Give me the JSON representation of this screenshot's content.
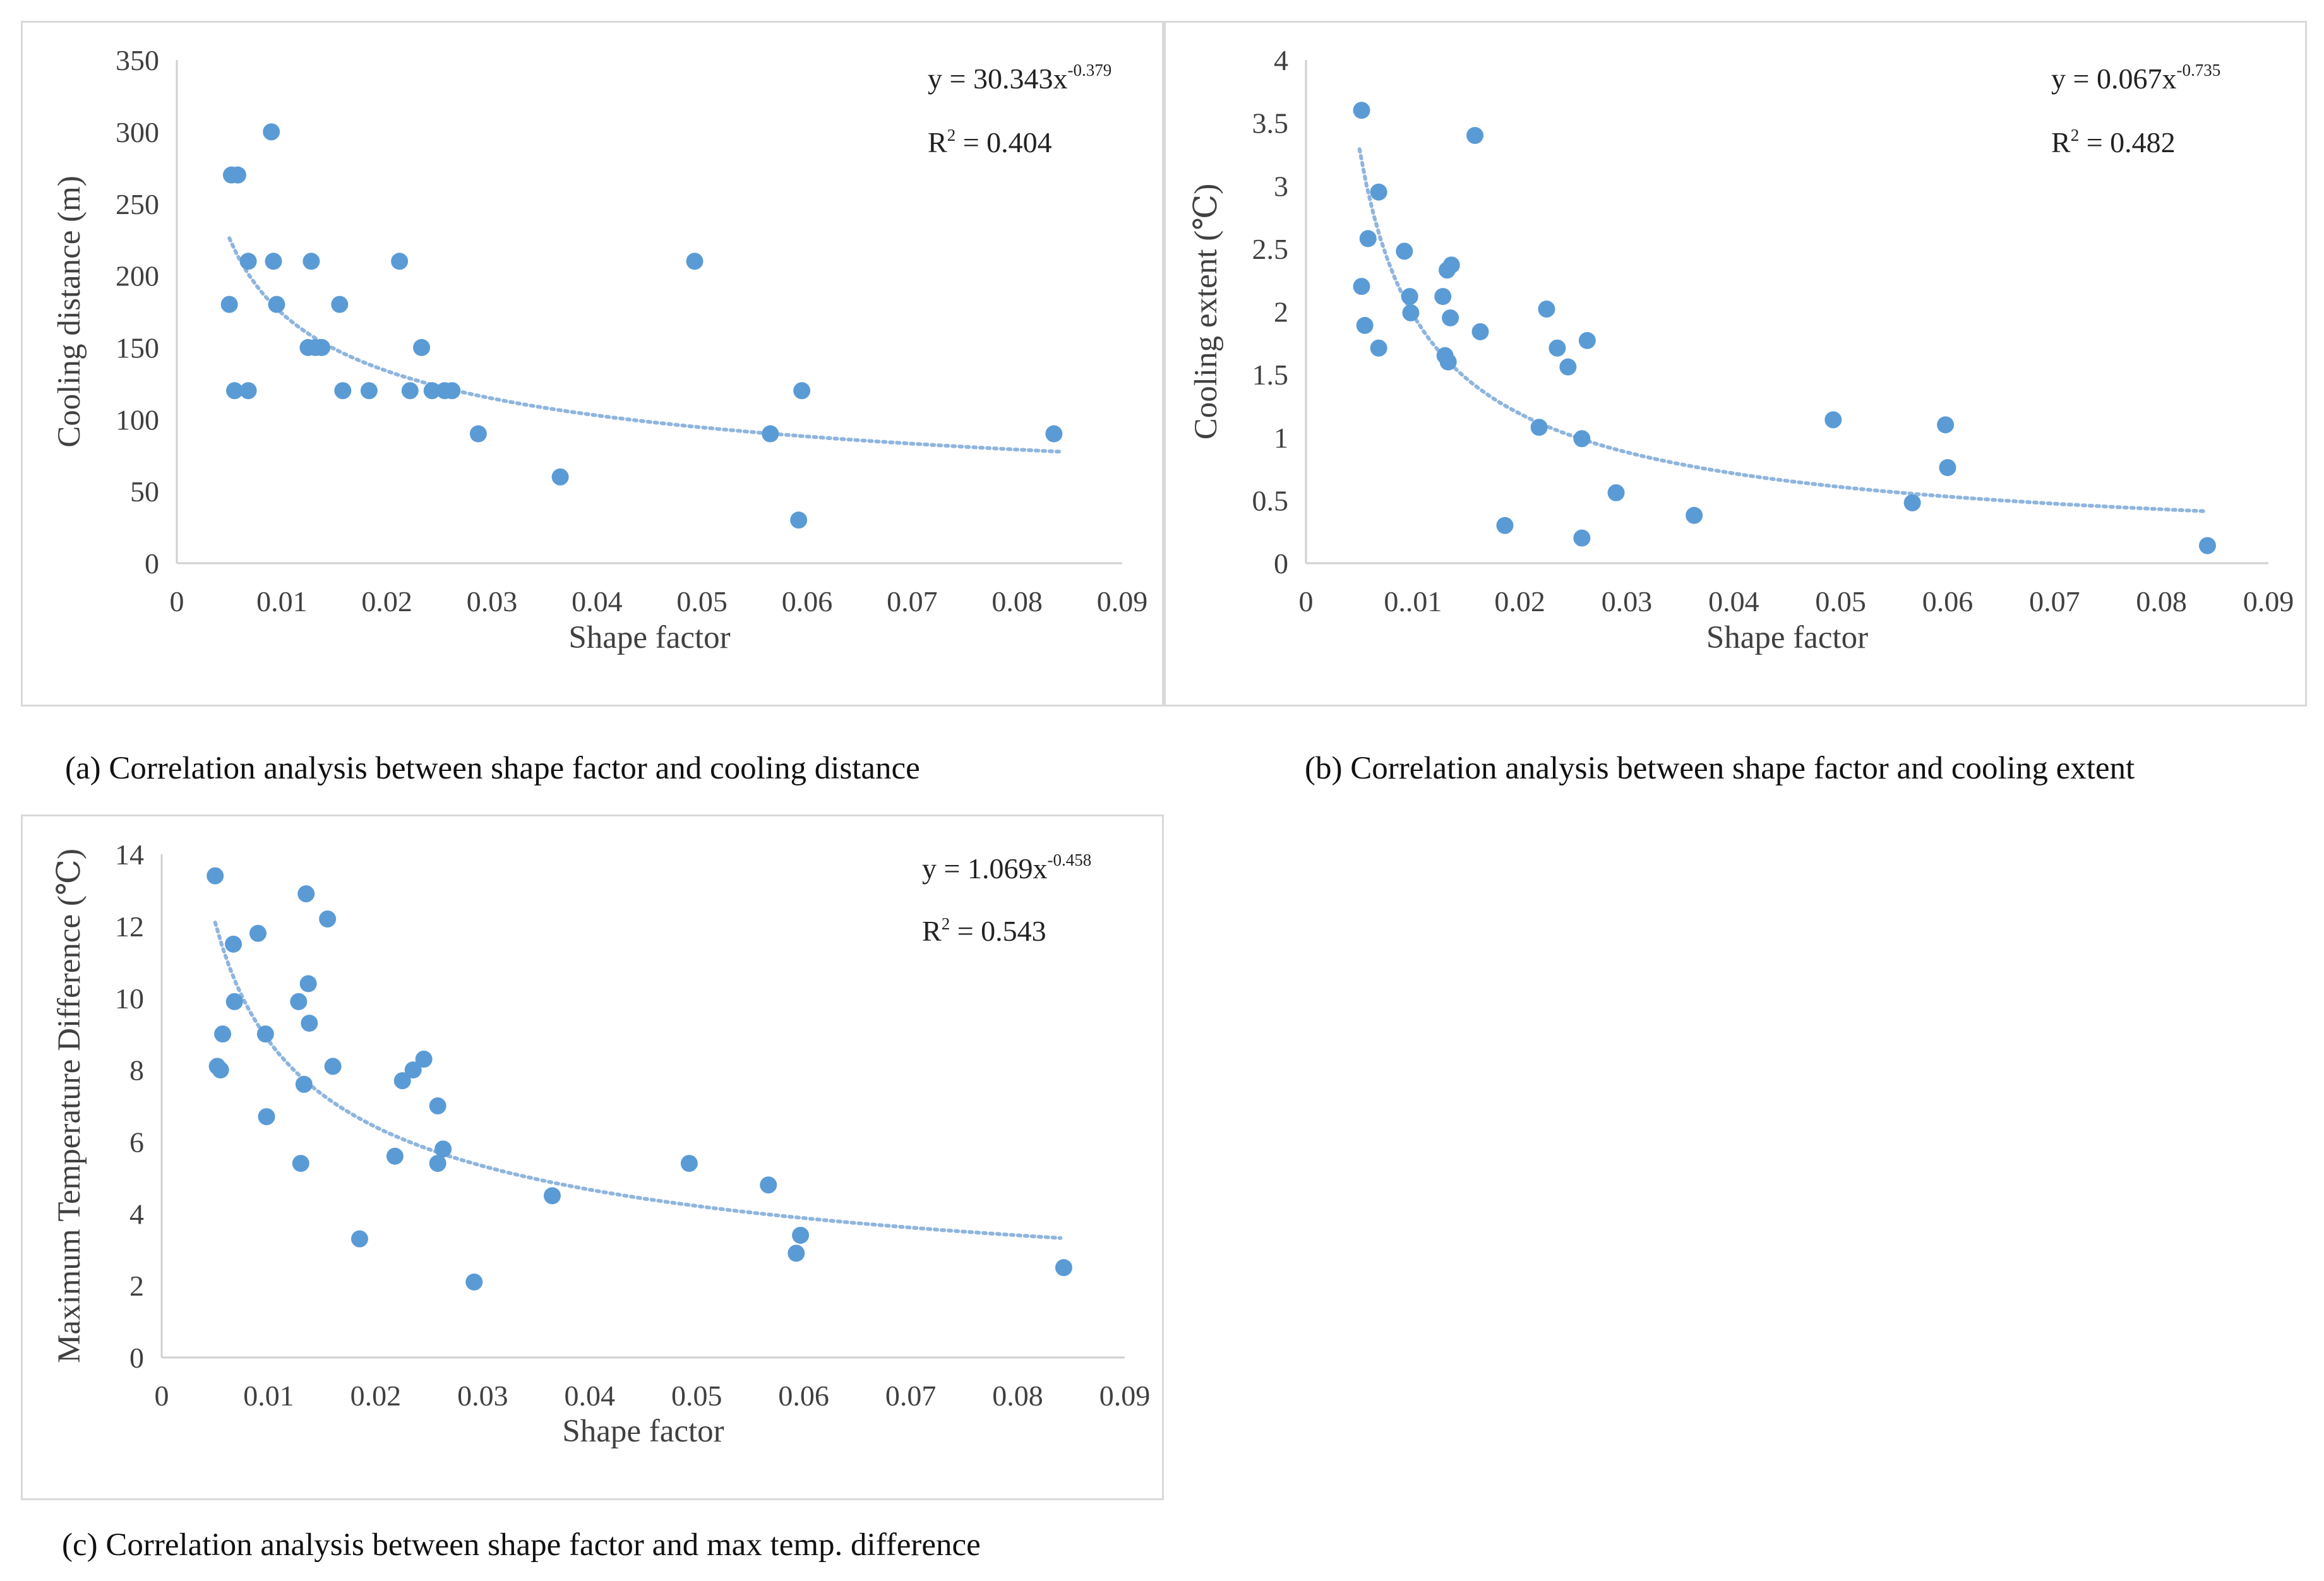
{
  "chart_data": [
    {
      "id": "a",
      "type": "scatter",
      "xlabel": "Shape factor",
      "ylabel": "Cooling distance (m)",
      "xlim": [
        0,
        0.09
      ],
      "ylim": [
        0,
        350
      ],
      "xticks": [
        0,
        0.01,
        0.02,
        0.03,
        0.04,
        0.05,
        0.06,
        0.07,
        0.08,
        0.09
      ],
      "xtick_labels": [
        "0",
        "0.01",
        "0.02",
        "0.03",
        "0.04",
        "0.05",
        "0.06",
        "0.07",
        "0.08",
        "0.09"
      ],
      "yticks": [
        0,
        50,
        100,
        150,
        200,
        250,
        300,
        350
      ],
      "ytick_labels": [
        "0",
        "50",
        "100",
        "150",
        "200",
        "250",
        "300",
        "350"
      ],
      "grid": false,
      "marker_color": "#5b9bd5",
      "trend_color": "#8fb5de",
      "equation_main": "y = 30.343x",
      "equation_exp": "-0.379",
      "r2_label": "R",
      "r2_exp": "2",
      "r2_value": " = 0.404",
      "trend": {
        "type": "power",
        "coef": 30.343,
        "exp": -0.379,
        "x_range": [
          0.005,
          0.084
        ]
      },
      "points": [
        {
          "x": 0.0052,
          "y": 270
        },
        {
          "x": 0.0058,
          "y": 270
        },
        {
          "x": 0.009,
          "y": 300
        },
        {
          "x": 0.005,
          "y": 180
        },
        {
          "x": 0.0068,
          "y": 210
        },
        {
          "x": 0.0092,
          "y": 210
        },
        {
          "x": 0.0095,
          "y": 180
        },
        {
          "x": 0.0128,
          "y": 210
        },
        {
          "x": 0.0155,
          "y": 180
        },
        {
          "x": 0.0212,
          "y": 210
        },
        {
          "x": 0.0055,
          "y": 120
        },
        {
          "x": 0.0068,
          "y": 120
        },
        {
          "x": 0.0125,
          "y": 150
        },
        {
          "x": 0.0132,
          "y": 150
        },
        {
          "x": 0.0138,
          "y": 150
        },
        {
          "x": 0.0158,
          "y": 120
        },
        {
          "x": 0.0183,
          "y": 120
        },
        {
          "x": 0.0222,
          "y": 120
        },
        {
          "x": 0.0233,
          "y": 150
        },
        {
          "x": 0.0243,
          "y": 120
        },
        {
          "x": 0.0255,
          "y": 120
        },
        {
          "x": 0.0262,
          "y": 120
        },
        {
          "x": 0.0287,
          "y": 90
        },
        {
          "x": 0.0365,
          "y": 60
        },
        {
          "x": 0.0493,
          "y": 210
        },
        {
          "x": 0.0565,
          "y": 90
        },
        {
          "x": 0.0592,
          "y": 30
        },
        {
          "x": 0.0595,
          "y": 120
        },
        {
          "x": 0.0835,
          "y": 90
        }
      ],
      "caption": "(a) Correlation analysis between shape factor and cooling distance"
    },
    {
      "id": "b",
      "type": "scatter",
      "xlabel": "Shape factor",
      "ylabel": "Cooling extent (℃)",
      "xlim": [
        0,
        0.09
      ],
      "ylim": [
        0,
        4
      ],
      "xticks": [
        0,
        0.01,
        0.02,
        0.03,
        0.04,
        0.05,
        0.06,
        0.07,
        0.08,
        0.09
      ],
      "xtick_labels": [
        "0",
        "0..01",
        "0.02",
        "0.03",
        "0.04",
        "0.05",
        "0.06",
        "0.07",
        "0.08",
        "0.09"
      ],
      "yticks": [
        0,
        0.5,
        1,
        1.5,
        2,
        2.5,
        3,
        3.5,
        4
      ],
      "ytick_labels": [
        "0",
        "0.5",
        "1",
        "1.5",
        "2",
        "2.5",
        "3",
        "3.5",
        "4"
      ],
      "grid": false,
      "marker_color": "#5b9bd5",
      "trend_color": "#8fb5de",
      "equation_main": "y = 0.067x",
      "equation_exp": "-0.735",
      "r2_label": "R",
      "r2_exp": "2",
      "r2_value": " = 0.482",
      "trend": {
        "type": "power",
        "coef": 0.067,
        "exp": -0.735,
        "x_range": [
          0.005,
          0.084
        ]
      },
      "points": [
        {
          "x": 0.0052,
          "y": 3.6
        },
        {
          "x": 0.0158,
          "y": 3.4
        },
        {
          "x": 0.0068,
          "y": 2.95
        },
        {
          "x": 0.0058,
          "y": 2.58
        },
        {
          "x": 0.0092,
          "y": 2.48
        },
        {
          "x": 0.0052,
          "y": 2.2
        },
        {
          "x": 0.0097,
          "y": 2.12
        },
        {
          "x": 0.0098,
          "y": 1.99
        },
        {
          "x": 0.0055,
          "y": 1.89
        },
        {
          "x": 0.0068,
          "y": 1.71
        },
        {
          "x": 0.0128,
          "y": 2.12
        },
        {
          "x": 0.0132,
          "y": 2.33
        },
        {
          "x": 0.0136,
          "y": 2.37
        },
        {
          "x": 0.0135,
          "y": 1.95
        },
        {
          "x": 0.013,
          "y": 1.65
        },
        {
          "x": 0.0133,
          "y": 1.6
        },
        {
          "x": 0.0163,
          "y": 1.84
        },
        {
          "x": 0.0225,
          "y": 2.02
        },
        {
          "x": 0.0235,
          "y": 1.71
        },
        {
          "x": 0.0245,
          "y": 1.56
        },
        {
          "x": 0.0263,
          "y": 1.77
        },
        {
          "x": 0.0218,
          "y": 1.08
        },
        {
          "x": 0.0258,
          "y": 0.99
        },
        {
          "x": 0.0186,
          "y": 0.3
        },
        {
          "x": 0.0258,
          "y": 0.2
        },
        {
          "x": 0.029,
          "y": 0.56
        },
        {
          "x": 0.0363,
          "y": 0.38
        },
        {
          "x": 0.0493,
          "y": 1.14
        },
        {
          "x": 0.0567,
          "y": 0.48
        },
        {
          "x": 0.0598,
          "y": 1.1
        },
        {
          "x": 0.06,
          "y": 0.76
        },
        {
          "x": 0.0843,
          "y": 0.14
        }
      ],
      "caption": "(b) Correlation analysis between shape factor and cooling extent"
    },
    {
      "id": "c",
      "type": "scatter",
      "xlabel": "Shape factor",
      "ylabel": "Maximum Temperature Difference (℃)",
      "xlim": [
        0,
        0.09
      ],
      "ylim": [
        0,
        14
      ],
      "xticks": [
        0,
        0.01,
        0.02,
        0.03,
        0.04,
        0.05,
        0.06,
        0.07,
        0.08,
        0.09
      ],
      "xtick_labels": [
        "0",
        "0.01",
        "0.02",
        "0.03",
        "0.04",
        "0.05",
        "0.06",
        "0.07",
        "0.08",
        "0.09"
      ],
      "yticks": [
        0,
        2,
        4,
        6,
        8,
        10,
        12,
        14
      ],
      "ytick_labels": [
        "0",
        "2",
        "4",
        "6",
        "8",
        "10",
        "12",
        "14"
      ],
      "grid": false,
      "marker_color": "#5b9bd5",
      "trend_color": "#8fb5de",
      "equation_main": "y = 1.069x",
      "equation_exp": "-0.458",
      "r2_label": "R",
      "r2_exp": "2",
      "r2_value": " = 0.543",
      "trend": {
        "type": "power",
        "coef": 1.069,
        "exp": -0.458,
        "x_range": [
          0.005,
          0.084
        ]
      },
      "points": [
        {
          "x": 0.005,
          "y": 13.4
        },
        {
          "x": 0.0135,
          "y": 12.9
        },
        {
          "x": 0.0155,
          "y": 12.2
        },
        {
          "x": 0.009,
          "y": 11.8
        },
        {
          "x": 0.0067,
          "y": 11.5
        },
        {
          "x": 0.0068,
          "y": 9.9
        },
        {
          "x": 0.0137,
          "y": 10.4
        },
        {
          "x": 0.0128,
          "y": 9.9
        },
        {
          "x": 0.0138,
          "y": 9.3
        },
        {
          "x": 0.0057,
          "y": 9.0
        },
        {
          "x": 0.0097,
          "y": 9.0
        },
        {
          "x": 0.0052,
          "y": 8.1
        },
        {
          "x": 0.0055,
          "y": 8.0
        },
        {
          "x": 0.016,
          "y": 8.1
        },
        {
          "x": 0.0133,
          "y": 7.6
        },
        {
          "x": 0.0098,
          "y": 6.7
        },
        {
          "x": 0.013,
          "y": 5.4
        },
        {
          "x": 0.0245,
          "y": 8.3
        },
        {
          "x": 0.0235,
          "y": 8.0
        },
        {
          "x": 0.0225,
          "y": 7.7
        },
        {
          "x": 0.0258,
          "y": 7.0
        },
        {
          "x": 0.0263,
          "y": 5.8
        },
        {
          "x": 0.0258,
          "y": 5.4
        },
        {
          "x": 0.0218,
          "y": 5.6
        },
        {
          "x": 0.0185,
          "y": 3.3
        },
        {
          "x": 0.0292,
          "y": 2.1
        },
        {
          "x": 0.0365,
          "y": 4.5
        },
        {
          "x": 0.0493,
          "y": 5.4
        },
        {
          "x": 0.0567,
          "y": 4.8
        },
        {
          "x": 0.0597,
          "y": 3.4
        },
        {
          "x": 0.0593,
          "y": 2.9
        },
        {
          "x": 0.0843,
          "y": 2.5
        }
      ],
      "caption": "(c) Correlation analysis between shape factor and max temp. difference"
    }
  ]
}
